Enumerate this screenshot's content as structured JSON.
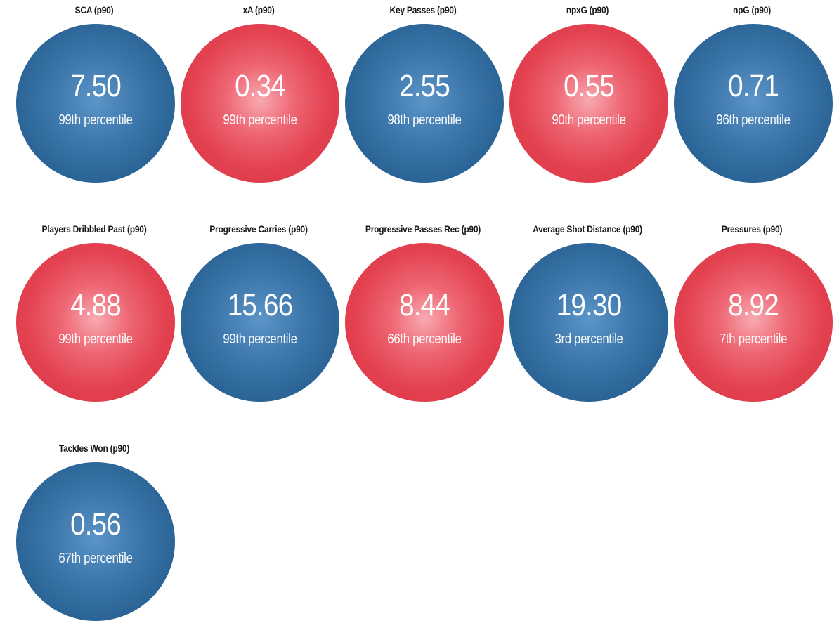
{
  "colors": {
    "blue": "#2f6a9e",
    "red": "#e34251",
    "label_text": "#1a1a1a",
    "value_text": "#ffffff"
  },
  "stats": [
    {
      "label": "SCA (p90)",
      "value": "7.50",
      "percentile": "99th percentile",
      "color": "blue"
    },
    {
      "label": "xA (p90)",
      "value": "0.34",
      "percentile": "99th percentile",
      "color": "red"
    },
    {
      "label": "Key Passes (p90)",
      "value": "2.55",
      "percentile": "98th percentile",
      "color": "blue"
    },
    {
      "label": "npxG (p90)",
      "value": "0.55",
      "percentile": "90th percentile",
      "color": "red"
    },
    {
      "label": "npG (p90)",
      "value": "0.71",
      "percentile": "96th percentile",
      "color": "blue"
    },
    {
      "label": "Players Dribbled Past (p90)",
      "value": "4.88",
      "percentile": "99th percentile",
      "color": "red"
    },
    {
      "label": "Progressive Carries (p90)",
      "value": "15.66",
      "percentile": "99th percentile",
      "color": "blue"
    },
    {
      "label": "Progressive Passes Rec (p90)",
      "value": "8.44",
      "percentile": "66th percentile",
      "color": "red"
    },
    {
      "label": "Average Shot Distance (p90)",
      "value": "19.30",
      "percentile": "3rd percentile",
      "color": "blue"
    },
    {
      "label": "Pressures (p90)",
      "value": "8.92",
      "percentile": "7th percentile",
      "color": "red"
    },
    {
      "label": "Tackles Won (p90)",
      "value": "0.56",
      "percentile": "67th percentile",
      "color": "blue"
    }
  ]
}
